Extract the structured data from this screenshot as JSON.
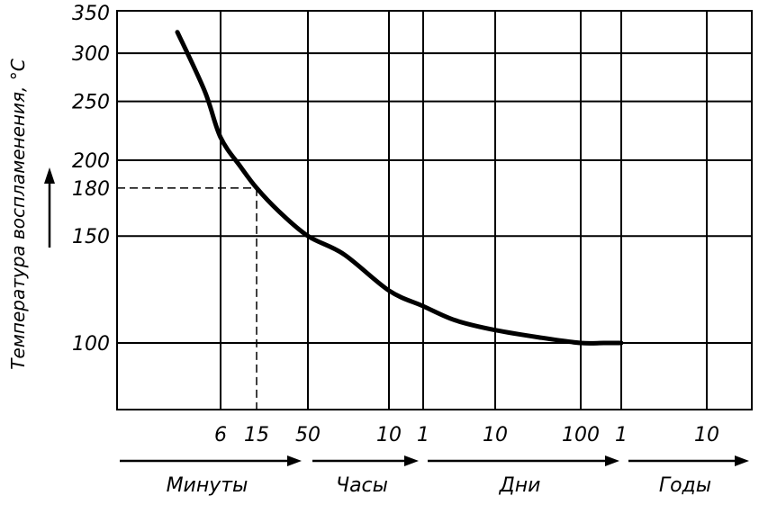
{
  "chart_data": {
    "type": "line",
    "ylabel": "Температура воспламенения, °С",
    "yscale": "log",
    "ylim": [
      70,
      350
    ],
    "y_ticks": [
      {
        "value": 350,
        "label": "350"
      },
      {
        "value": 300,
        "label": "300"
      },
      {
        "value": 250,
        "label": "250"
      },
      {
        "value": 200,
        "label": "200"
      },
      {
        "value": 180,
        "label": "180"
      },
      {
        "value": 150,
        "label": "150"
      },
      {
        "value": 100,
        "label": "100"
      }
    ],
    "x_ticks": [
      {
        "label": "6",
        "minutes": 6
      },
      {
        "label": "15",
        "minutes": 15
      },
      {
        "label": "50",
        "minutes": 50
      },
      {
        "label": "10",
        "minutes": 600
      },
      {
        "label": "1",
        "minutes": 1440
      },
      {
        "label": "10",
        "minutes": 14400
      },
      {
        "label": "100",
        "minutes": 144000
      },
      {
        "label": "1",
        "minutes": 525600
      },
      {
        "label": "10",
        "minutes": 5256000
      }
    ],
    "x_segments": [
      {
        "label": "Минуты",
        "from_minutes": 1,
        "to_minutes": 60
      },
      {
        "label": "Часы",
        "from_minutes": 60,
        "to_minutes": 1440
      },
      {
        "label": "Дни",
        "from_minutes": 1440,
        "to_minutes": 525600
      },
      {
        "label": "Годы",
        "from_minutes": 525600,
        "to_minutes": 10000000
      }
    ],
    "series": [
      {
        "x_minutes": [
          2,
          4,
          6,
          10,
          15,
          25,
          50,
          150,
          600,
          1440,
          4000,
          14400,
          50000,
          144000,
          300000,
          525600
        ],
        "y": [
          325,
          260,
          218,
          195,
          180,
          165,
          150,
          140,
          122,
          115,
          109,
          105,
          102,
          100,
          100,
          100
        ]
      }
    ],
    "reference_point": {
      "x_minutes": 15,
      "y": 180
    },
    "grid": true
  }
}
